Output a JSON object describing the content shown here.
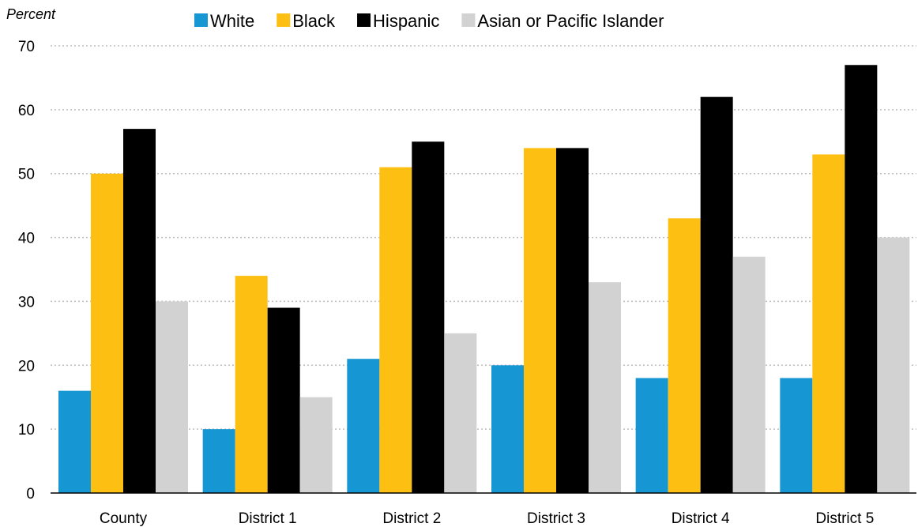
{
  "chart_data": {
    "type": "bar",
    "ylabel": "Percent",
    "ylim": [
      0,
      70
    ],
    "yticks": [
      0,
      10,
      20,
      30,
      40,
      50,
      60,
      70
    ],
    "grid": true,
    "legend_position": "top",
    "categories": [
      "County",
      "District 1",
      "District 2",
      "District 3",
      "District 4",
      "District 5"
    ],
    "series": [
      {
        "name": "White",
        "color": "#1696d2",
        "values": [
          16,
          10,
          21,
          20,
          18,
          18
        ]
      },
      {
        "name": "Black",
        "color": "#fdbf11",
        "values": [
          50,
          34,
          51,
          54,
          43,
          53
        ]
      },
      {
        "name": "Hispanic",
        "color": "#000000",
        "values": [
          57,
          29,
          55,
          54,
          62,
          67
        ]
      },
      {
        "name": "Asian or Pacific Islander",
        "color": "#d2d2d2",
        "values": [
          30,
          15,
          25,
          33,
          37,
          40
        ]
      }
    ]
  }
}
